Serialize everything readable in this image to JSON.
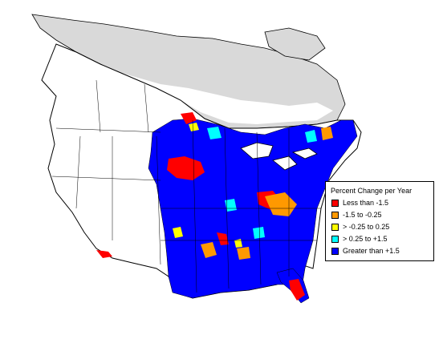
{
  "legend": {
    "title": "Percent Change per Year",
    "items": [
      {
        "label": "Less than -1.5",
        "color": "#ff0000"
      },
      {
        "label": "-1.5 to -0.25",
        "color": "#ff9900"
      },
      {
        "label": "> -0.25 to 0.25",
        "color": "#ffff00"
      },
      {
        "label": "> 0.25 to +1.5",
        "color": "#00ffff"
      },
      {
        "label": "Greater than +1.5",
        "color": "#0000ff"
      }
    ]
  },
  "colors": {
    "no_data_region": "#d9d9d9",
    "land": "#ffffff",
    "boundary": "#000000"
  }
}
